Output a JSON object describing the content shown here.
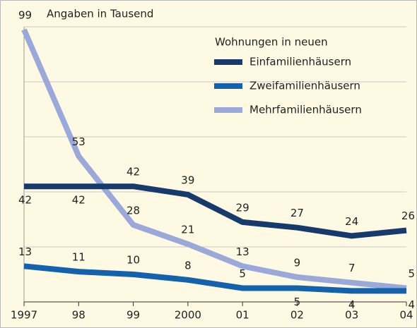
{
  "chart_data": {
    "type": "line",
    "title": "Angaben in Tausend",
    "legend_title": "Wohnungen in neuen",
    "categories": [
      "1997",
      "98",
      "99",
      "2000",
      "01",
      "02",
      "03",
      "04"
    ],
    "series": [
      {
        "name": "Einfamilienhäusern",
        "color": "#173a6d",
        "values": [
          42,
          42,
          42,
          39,
          29,
          27,
          24,
          26
        ]
      },
      {
        "name": "Zweifamilienhäusern",
        "color": "#1461ad",
        "values": [
          13,
          11,
          10,
          8,
          5,
          5,
          4,
          4
        ]
      },
      {
        "name": "Mehrfamilienhäusern",
        "color": "#9ba9da",
        "values": [
          99,
          53,
          28,
          21,
          13,
          9,
          7,
          5
        ]
      }
    ],
    "ylim": [
      0,
      100
    ],
    "yticks": [
      0,
      20,
      40,
      60,
      80,
      100
    ],
    "grid": true,
    "legend": "top-right"
  }
}
